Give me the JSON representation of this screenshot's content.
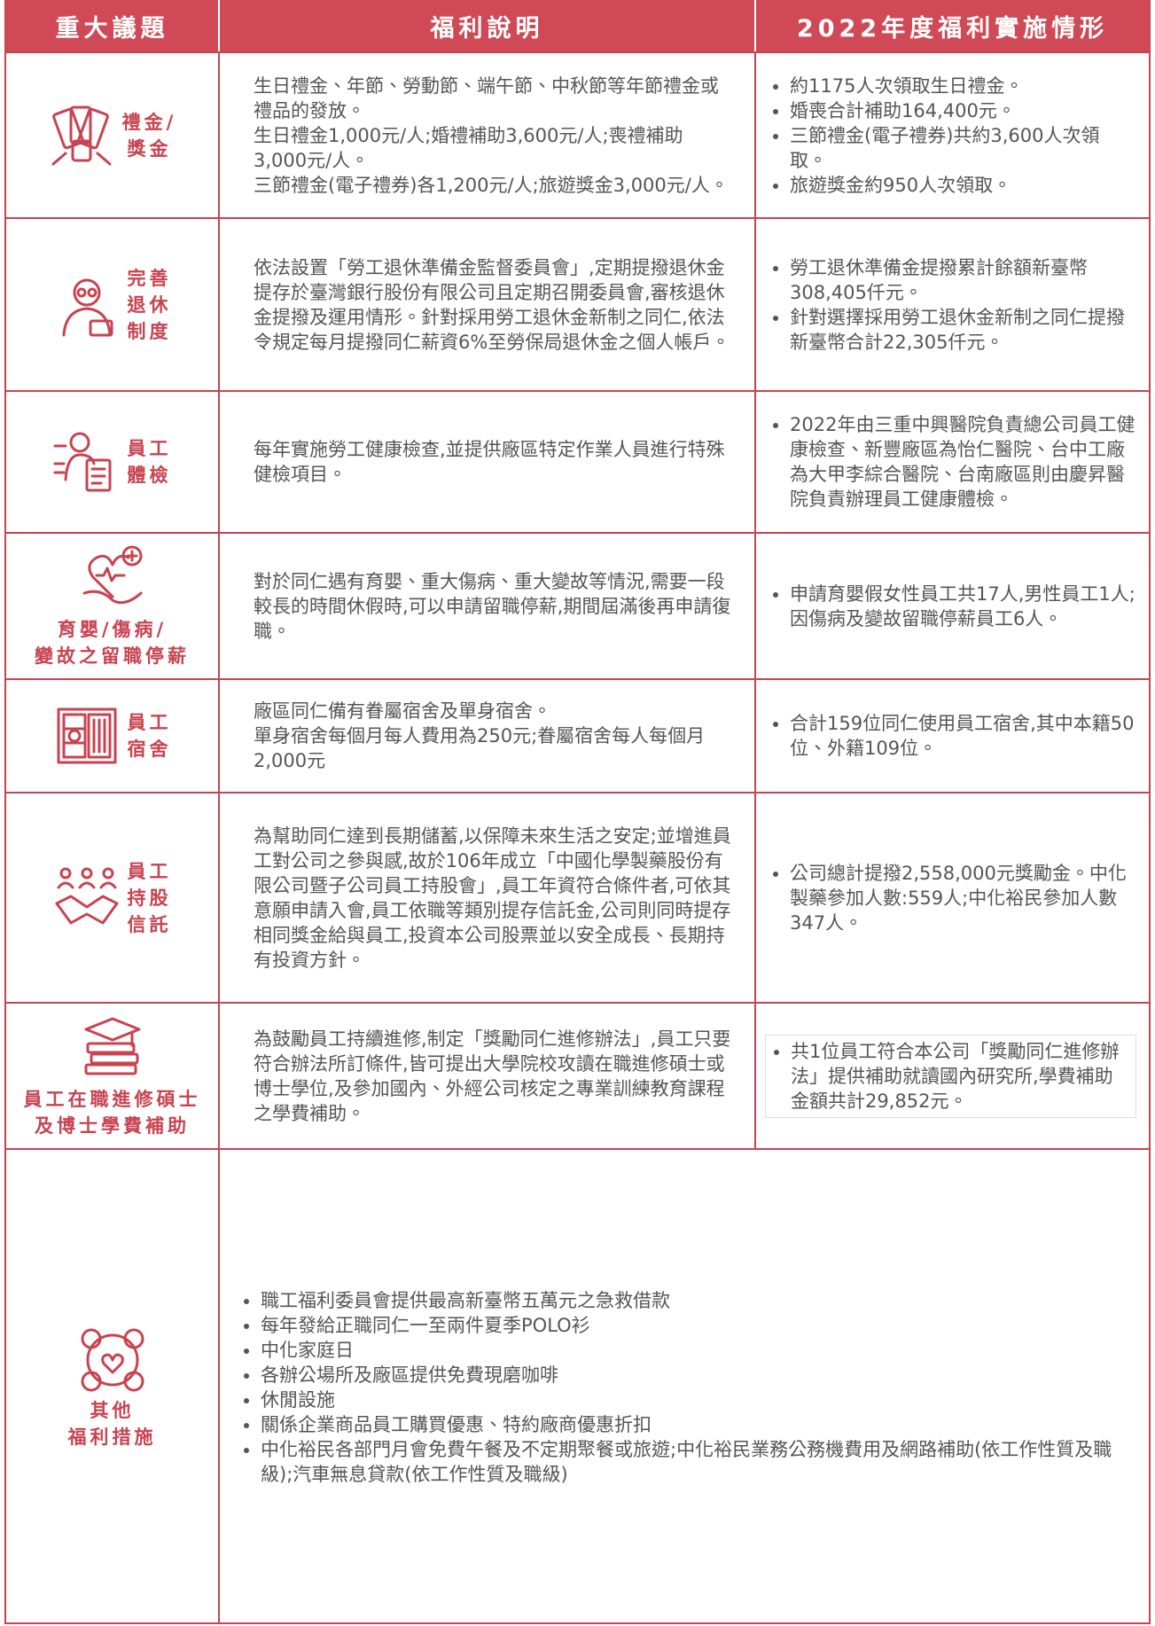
{
  "header": [
    "重大議題",
    "福利說明",
    "2022年度福利實施情形"
  ],
  "rows": [
    {
      "topic": [
        "禮金/",
        "獎金"
      ],
      "description": [
        "生日禮金、年節、勞動節、端午節、中秋節等年節禮金或禮品的發放。",
        "生日禮金1,000元/人;婚禮補助3,600元/人;喪禮補助3,000元/人。",
        "三節禮金(電子禮券)各1,200元/人;旅遊獎金3,000元/人。"
      ],
      "status": [
        "約1175人次領取生日禮金。",
        "婚喪合計補助164,400元。",
        "三節禮金(電子禮券)共約3,600人次領取。",
        "旅遊獎金約950人次領取。"
      ]
    },
    {
      "topic": [
        "完善",
        "退休",
        "制度"
      ],
      "description": [
        "依法設置「勞工退休準備金監督委員會」,定期提撥退休金提存於臺灣銀行股份有限公司且定期召開委員會,審核退休金提撥及運用情形。針對採用勞工退休金新制之同仁,依法令規定每月提撥同仁薪資6%至勞保局退休金之個人帳戶。"
      ],
      "status": [
        "勞工退休準備金提撥累計餘額新臺幣308,405仟元。",
        "針對選擇採用勞工退休金新制之同仁提撥新臺幣合計22,305仟元。"
      ]
    },
    {
      "topic": [
        "員工",
        "體檢"
      ],
      "description": [
        "每年實施勞工健康檢查,並提供廠區特定作業人員進行特殊健檢項目。"
      ],
      "status": [
        "2022年由三重中興醫院負責總公司員工健康檢查、新豐廠區為怡仁醫院、台中工廠為大甲李綜合醫院、台南廠區則由慶昇醫院負責辦理員工健康體檢。"
      ]
    },
    {
      "topic": [
        "育嬰/傷病/",
        "變故之留職停薪"
      ],
      "description": [
        "對於同仁遇有育嬰、重大傷病、重大變故等情況,需要一段較長的時間休假時,可以申請留職停薪,期間屆滿後再申請復職。"
      ],
      "status": [
        "申請育嬰假女性員工共17人,男性員工1人;因傷病及變故留職停薪員工6人。"
      ]
    },
    {
      "topic": [
        "員工",
        "宿舍"
      ],
      "description": [
        "廠區同仁備有眷屬宿舍及單身宿舍。",
        "單身宿舍每個月每人費用為250元;眷屬宿舍每人每個月2,000元"
      ],
      "status": [
        "合計159位同仁使用員工宿舍,其中本籍50位、外籍109位。"
      ]
    },
    {
      "topic": [
        "員工",
        "持股",
        "信託"
      ],
      "description": [
        "為幫助同仁達到長期儲蓄,以保障未來生活之安定;並增進員工對公司之參與感,故於106年成立「中國化學製藥股份有限公司暨子公司員工持股會」,員工年資符合條件者,可依其意願申請入會,員工依職等類別提存信託金,公司則同時提存相同獎金給與員工,投資本公司股票並以安全成長、長期持有投資方針。"
      ],
      "status": [
        "公司總計提撥2,558,000元獎勵金。中化製藥參加人數:559人;中化裕民參加人數347人。"
      ]
    },
    {
      "topic": [
        "員工在職進修碩士",
        "及博士學費補助"
      ],
      "description": [
        "為鼓勵員工持續進修,制定「獎勵同仁進修辦法」,員工只要符合辦法所訂條件,皆可提出大學院校攻讀在職進修碩士或博士學位,及參加國內、外經公司核定之專業訓練教育課程之學費補助。"
      ],
      "status": [
        "共1位員工符合本公司「獎勵同仁進修辦法」提供補助就讀國內研究所,學費補助金額共計29,852元。"
      ]
    },
    {
      "topic": [
        "其他",
        "福利措施"
      ],
      "items": [
        "職工福利委員會提供最高新臺幣五萬元之急救借款",
        "每年發給正職同仁一至兩件夏季POLO衫",
        "中化家庭日",
        "各辦公場所及廠區提供免費現磨咖啡",
        "休閒設施",
        "關係企業商品員工購買優惠、特約廠商優惠折扣",
        "中化裕民各部門月會免費午餐及不定期聚餐或旅遊;中化裕民業務公務機費用及網路補助(依工作性質及職級);汽車無息貸款(依工作性質及職級)"
      ]
    }
  ]
}
